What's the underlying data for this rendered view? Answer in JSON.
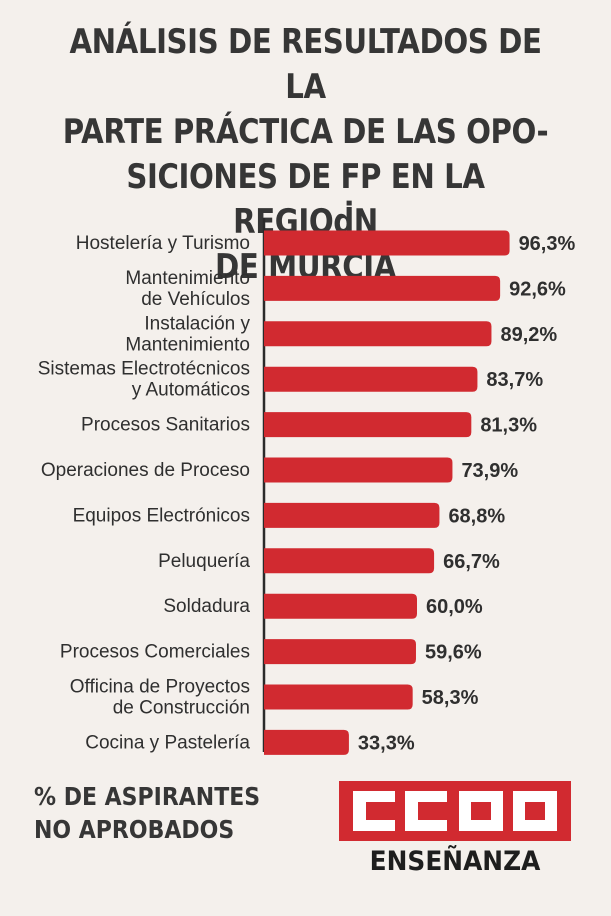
{
  "title": "ANÁLISIS DE RESULTADOS DE LA\nPARTE PRÁCTICA DE LAS OPO-\nSICIONES DE FP EN LA REGIOḋN\nDE MURCIA",
  "chart_data": {
    "type": "bar",
    "orientation": "horizontal",
    "categories": [
      [
        "Hostelería y Turismo"
      ],
      [
        "Mantenimientó",
        "de Vehículos"
      ],
      [
        "Instalación y",
        "Mantenimiento"
      ],
      [
        "Sistemas Electrotécnicos",
        "y Automáticos"
      ],
      [
        "Procesos Sanitarios"
      ],
      [
        "Operaciones de Proceso"
      ],
      [
        "Equipos Electrónicos"
      ],
      [
        "Peluquería"
      ],
      [
        "Soldadura"
      ],
      [
        "Procesos Comerciales"
      ],
      [
        "Officina de Proyectos",
        "de Construcción"
      ],
      [
        "Cocina y Pastelería"
      ]
    ],
    "values": [
      96.3,
      92.6,
      89.2,
      83.7,
      81.3,
      73.9,
      68.8,
      66.7,
      60.0,
      59.6,
      58.3,
      33.3
    ],
    "value_labels": [
      "96,3%",
      "92,6%",
      "89,2%",
      "83,7%",
      "81,3%",
      "73,9%",
      "68,8%",
      "66,7%",
      "60,0%",
      "59,6%",
      "58,3%",
      "33,3%"
    ],
    "bar_color": "#d12a30",
    "axis_color": "#2a2a2a",
    "grid": false,
    "legend": "none"
  },
  "footer": {
    "caption": "% DE ASPIRANTES\nNO APROBADOS",
    "logo_text": "CCOO",
    "logo_sub": "ENSEÑANZA",
    "logo_color": "#d12a30"
  }
}
